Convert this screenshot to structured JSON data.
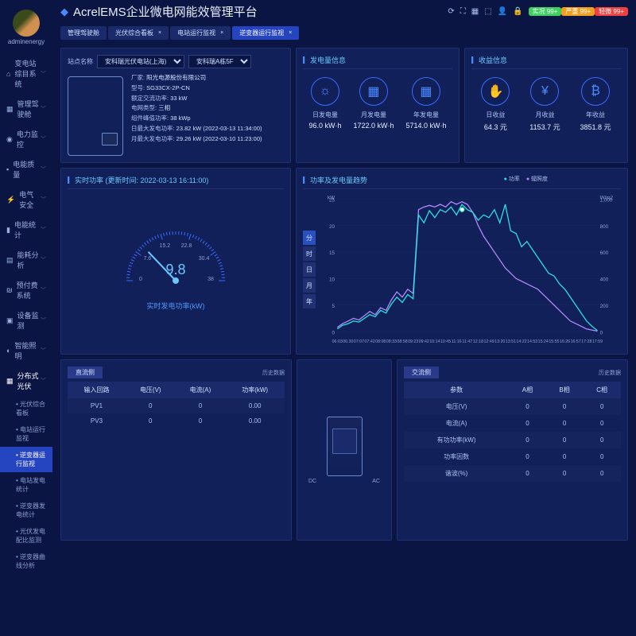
{
  "user_name": "adminenergy",
  "title": "AcrelEMS企业微电网能效管理平台",
  "header_badges": [
    {
      "text": "实况",
      "cls": "g",
      "count": "99+"
    },
    {
      "text": "严重",
      "cls": "o",
      "count": "99+"
    },
    {
      "text": "轻微",
      "cls": "r",
      "count": "99+"
    }
  ],
  "tabs": [
    {
      "label": "管理驾驶舱",
      "closable": false,
      "active": false
    },
    {
      "label": "光伏综合看板",
      "closable": true,
      "active": false
    },
    {
      "label": "电站运行监视",
      "closable": true,
      "active": false
    },
    {
      "label": "逆变器运行监视",
      "closable": true,
      "active": true
    }
  ],
  "nav": [
    {
      "icon": "⌂",
      "label": "变电站综目系统"
    },
    {
      "icon": "▦",
      "label": "管理驾驶舱"
    },
    {
      "icon": "◉",
      "label": "电力监控"
    },
    {
      "icon": "▪",
      "label": "电能质量"
    },
    {
      "icon": "⚡",
      "label": "电气安全"
    },
    {
      "icon": "▮",
      "label": "电能统计"
    },
    {
      "icon": "▤",
      "label": "能耗分析"
    },
    {
      "icon": "₪",
      "label": "预付费系统"
    },
    {
      "icon": "▣",
      "label": "设备监测"
    },
    {
      "icon": "◐",
      "label": "智能照明"
    },
    {
      "icon": "▦",
      "label": "分布式光伏",
      "active": true
    }
  ],
  "subnav": [
    {
      "label": "光伏综合看板"
    },
    {
      "label": "电站运行监视"
    },
    {
      "label": "逆变器运行监视",
      "active": true
    },
    {
      "label": "电站发电统计"
    },
    {
      "label": "逆变器发电统计"
    },
    {
      "label": "光伏发电配比监测"
    },
    {
      "label": "逆变器曲线分析"
    }
  ],
  "site_label": "站点名称",
  "site_sel1": "安科瑞光伏电站(上海)",
  "site_sel2": "安科瑞A栋5F",
  "specs": [
    {
      "k": "厂家",
      "v": "阳光电源股份有限公司"
    },
    {
      "k": "型号",
      "v": "SG33CX-2P-CN"
    },
    {
      "k": "额定交流功率",
      "v": "33 kW"
    },
    {
      "k": "电网类型",
      "v": "三相"
    },
    {
      "k": "组件峰值功率",
      "v": "38 kWp"
    },
    {
      "k": "日最大发电功率",
      "v": "23.82 kW (2022-03-13 11:34:00)"
    },
    {
      "k": "月最大发电功率",
      "v": "29.26 kW (2022-03-10 11:23:00)"
    }
  ],
  "gen_panel_title": "发电量信息",
  "gen_stats": [
    {
      "icon": "☼",
      "label": "日发电量",
      "val": "96.0 kW·h"
    },
    {
      "icon": "▦",
      "label": "月发电量",
      "val": "1722.0 kW·h"
    },
    {
      "icon": "▦",
      "label": "年发电量",
      "val": "5714.0 kW·h"
    }
  ],
  "rev_panel_title": "收益信息",
  "rev_stats": [
    {
      "icon": "✋",
      "label": "日收益",
      "val": "64.3 元"
    },
    {
      "icon": "¥",
      "label": "月收益",
      "val": "1153.7 元"
    },
    {
      "icon": "₿",
      "label": "年收益",
      "val": "3851.8 元"
    }
  ],
  "gauge_title": "实时功率 (更新时间: 2022-03-13 16:11:00)",
  "gauge_ticks": [
    "0",
    "7.6",
    "15.2",
    "22.8",
    "30.4",
    "38"
  ],
  "gauge_val": "9.8",
  "gauge_label": "实时发电功率(kW)",
  "chart_title": "功率及发电量趋势",
  "chart_legend_1": "功率",
  "chart_legend_2": "辐照度",
  "chart_y_left": "kW",
  "chart_y_right": "W/m2",
  "chart_y_ticks_left": [
    "25",
    "20",
    "15",
    "10",
    "5",
    "0"
  ],
  "chart_y_ticks_right": [
    "1,000",
    "800",
    "600",
    "400",
    "200",
    "0"
  ],
  "chart_x_ticks": [
    "06:03",
    "06:30",
    "07:07",
    "07:42",
    "08:08",
    "08:33",
    "08:58",
    "09:23",
    "09:42",
    "10:14",
    "10:45",
    "11:16",
    "11:47",
    "12:18",
    "12:49",
    "13:20",
    "13:51",
    "14:22",
    "14:53",
    "15:24",
    "15:55",
    "16:26",
    "16:57",
    "17:28",
    "17:59"
  ],
  "time_btns": [
    "分",
    "时",
    "日",
    "月",
    "年"
  ],
  "chart": {
    "series1_color": "#2ae5e0",
    "series2_color": "#b58aff",
    "series1": [
      0.5,
      1.2,
      1.5,
      2.0,
      1.8,
      2.5,
      3.2,
      2.8,
      4.0,
      3.5,
      5.2,
      6.5,
      5.5,
      7.0,
      6.2,
      22.0,
      20.5,
      22.8,
      21.5,
      23.0,
      22.5,
      23.5,
      22.0,
      24.0,
      23.0,
      22.5,
      21.0,
      22.0,
      21.5,
      23.0,
      20.5,
      24.0,
      19.0,
      18.5,
      16.0,
      17.0,
      15.5,
      14.0,
      12.5,
      11.0,
      10.5,
      9.0,
      8.0,
      6.5,
      5.0,
      3.5,
      2.0,
      1.0,
      0.2
    ],
    "series2": [
      0.8,
      1.5,
      2.0,
      2.5,
      2.2,
      3.0,
      3.8,
      3.2,
      4.5,
      4.0,
      6.0,
      7.5,
      6.5,
      8.0,
      7.2,
      23.0,
      23.5,
      23.8,
      23.5,
      24.0,
      23.5,
      24.5,
      24.0,
      24.5,
      24.0,
      22.5,
      20.0,
      18.0,
      16.5,
      15.0,
      13.5,
      12.0,
      11.0,
      10.0,
      9.5,
      9.0,
      8.5,
      8.0,
      7.0,
      6.0,
      5.0,
      4.0,
      3.0,
      2.0,
      1.5,
      1.0,
      0.5,
      0.3,
      0.1
    ]
  },
  "dc_table": {
    "title": "直流侧",
    "link": "历史数据",
    "headers": [
      "输入回路",
      "电压(V)",
      "电流(A)",
      "功率(kW)"
    ],
    "rows": [
      [
        "PV1",
        "0",
        "0",
        "0.00"
      ],
      [
        "PV3",
        "0",
        "0",
        "0.00"
      ]
    ]
  },
  "ac_table": {
    "title": "交流侧",
    "link": "历史数据",
    "headers": [
      "参数",
      "A相",
      "B相",
      "C相"
    ],
    "rows": [
      [
        "电压(V)",
        "0",
        "0",
        "0"
      ],
      [
        "电流(A)",
        "0",
        "0",
        "0"
      ],
      [
        "有功功率(kW)",
        "0",
        "0",
        "0"
      ],
      [
        "功率因数",
        "0",
        "0",
        "0"
      ],
      [
        "谐波(%)",
        "0",
        "0",
        "0"
      ]
    ]
  },
  "inv_dc": "DC",
  "inv_ac": "AC"
}
